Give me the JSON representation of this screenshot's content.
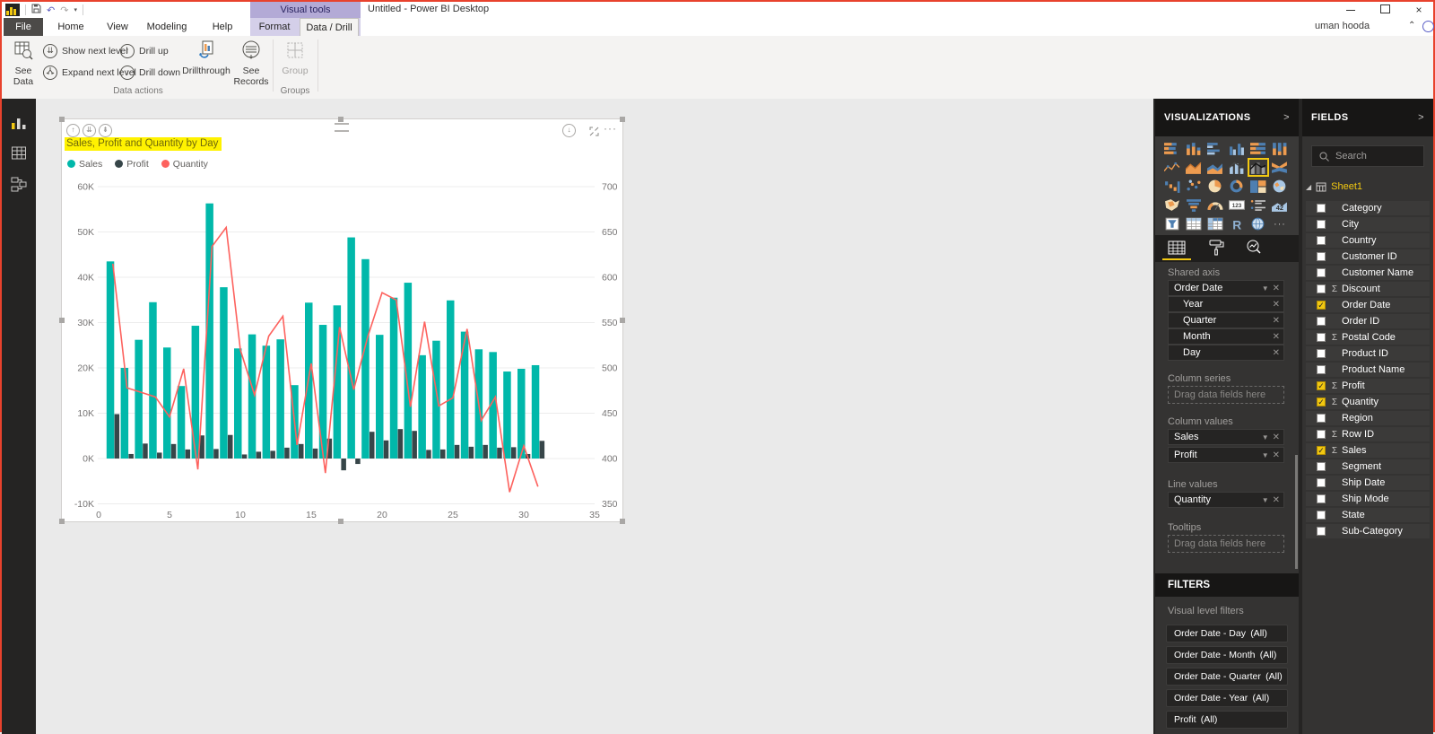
{
  "window": {
    "title": "Untitled - Power BI Desktop",
    "contextual_group": "Visual tools",
    "user": "uman hooda",
    "controls": {
      "minimize": "minimize",
      "maximize": "maximize",
      "close": "×"
    }
  },
  "ribbon": {
    "file_tab": "File",
    "tabs": [
      "Home",
      "View",
      "Modeling",
      "Help"
    ],
    "contextual_tabs": {
      "format": "Format",
      "active": "Data / Drill"
    },
    "commands": {
      "see_data": "See Data",
      "show_next_level": "Show next level",
      "expand_next_level": "Expand next level",
      "drill_up": "Drill up",
      "drill_down": "Drill down",
      "drillthrough": "Drillthrough",
      "see_records": "See Records",
      "group": "Group"
    },
    "group_labels": {
      "data_actions": "Data actions",
      "groups": "Groups"
    }
  },
  "visual": {
    "title": "Sales, Profit and Quantity by Day",
    "header_icons_left": [
      "drill-up",
      "go-to-next-level",
      "expand-next-level"
    ],
    "header_icons_right": [
      "drill-down-toggle",
      "focus-mode",
      "more-options"
    ]
  },
  "chart_data": {
    "type": "combo line and clustered column",
    "title": "Sales, Profit and Quantity by Day",
    "x": [
      1,
      2,
      3,
      4,
      5,
      6,
      7,
      8,
      9,
      10,
      11,
      12,
      13,
      14,
      15,
      16,
      17,
      18,
      19,
      20,
      21,
      22,
      23,
      24,
      25,
      26,
      27,
      28,
      29,
      30,
      31
    ],
    "series": [
      {
        "name": "Sales",
        "type": "column",
        "axis": "left",
        "color": "#01b8aa",
        "values": [
          43500,
          20000,
          26200,
          34500,
          24500,
          16000,
          29300,
          56300,
          37800,
          24300,
          27400,
          24900,
          26300,
          16200,
          34400,
          29500,
          33800,
          48800,
          44000,
          27300,
          35500,
          38800,
          22800,
          26000,
          34900,
          28000,
          24100,
          23500,
          19200,
          19800,
          20600
        ]
      },
      {
        "name": "Profit",
        "type": "column",
        "axis": "left",
        "color": "#374649",
        "values": [
          9800,
          1000,
          3300,
          1300,
          3200,
          2000,
          5100,
          2100,
          5200,
          900,
          1500,
          1700,
          2400,
          3200,
          2200,
          4400,
          -2600,
          -1200,
          5900,
          4000,
          6500,
          6100,
          1900,
          2000,
          3000,
          2600,
          3000,
          2400,
          2500,
          1000,
          3900
        ]
      },
      {
        "name": "Quantity",
        "type": "line",
        "axis": "right",
        "color": "#fd625e",
        "values": [
          615,
          478,
          473,
          468,
          446,
          499,
          388,
          634,
          655,
          520,
          470,
          535,
          557,
          415,
          505,
          384,
          545,
          476,
          535,
          583,
          575,
          457,
          551,
          458,
          467,
          543,
          442,
          468,
          363,
          414,
          369
        ]
      }
    ],
    "left_axis": {
      "ticks": [
        "60K",
        "50K",
        "40K",
        "30K",
        "20K",
        "10K",
        "0K",
        "-10K"
      ],
      "max": 60000,
      "min": -10000
    },
    "right_axis": {
      "ticks": [
        "700",
        "650",
        "600",
        "550",
        "500",
        "450",
        "400",
        "350"
      ],
      "max": 700,
      "min": 350
    },
    "x_axis": {
      "ticks": [
        "0",
        "5",
        "10",
        "15",
        "20",
        "25",
        "30",
        "35"
      ],
      "min": 0,
      "max": 35
    },
    "legend_position": "top-left",
    "grid": true
  },
  "visualizations_panel": {
    "title": "VISUALIZATIONS",
    "icons": [
      [
        "stacked-bar",
        "stacked-column",
        "clustered-bar",
        "clustered-column",
        "100-stacked-bar",
        "100-stacked-column"
      ],
      [
        "line",
        "area",
        "stacked-area",
        "line-stacked-column",
        "line-clustered-column",
        "ribbon"
      ],
      [
        "waterfall",
        "scatter",
        "pie",
        "donut",
        "treemap",
        "map"
      ],
      [
        "filled-map",
        "funnel",
        "gauge",
        "card",
        "multi-row-card",
        "kpi"
      ],
      [
        "slicer",
        "table",
        "matrix",
        "r-script",
        "arcgis-map",
        "more-options"
      ]
    ],
    "selected_icon": "line-clustered-column",
    "tabs": [
      "fields",
      "format",
      "analytics"
    ],
    "wells": [
      {
        "label": "Shared axis",
        "fields": [
          "Order Date"
        ],
        "subfields": [
          "Year",
          "Quarter",
          "Month",
          "Day"
        ]
      },
      {
        "label": "Column series",
        "placeholder": "Drag data fields here"
      },
      {
        "label": "Column values",
        "fields": [
          "Sales",
          "Profit"
        ]
      },
      {
        "label": "Line values",
        "fields": [
          "Quantity"
        ]
      },
      {
        "label": "Tooltips",
        "placeholder": "Drag data fields here"
      }
    ]
  },
  "filters_panel": {
    "title": "FILTERS",
    "section": "Visual level filters",
    "filters": [
      {
        "name": "Order Date - Day",
        "value": "(All)"
      },
      {
        "name": "Order Date - Month",
        "value": "(All)"
      },
      {
        "name": "Order Date - Quarter",
        "value": "(All)"
      },
      {
        "name": "Order Date - Year",
        "value": "(All)"
      },
      {
        "name": "Profit",
        "value": "(All)"
      }
    ]
  },
  "fields_panel": {
    "title": "FIELDS",
    "search_placeholder": "Search",
    "table_name": "Sheet1",
    "fields": [
      {
        "name": "Category",
        "numeric": false,
        "checked": false
      },
      {
        "name": "City",
        "numeric": false,
        "checked": false
      },
      {
        "name": "Country",
        "numeric": false,
        "checked": false
      },
      {
        "name": "Customer ID",
        "numeric": false,
        "checked": false
      },
      {
        "name": "Customer Name",
        "numeric": false,
        "checked": false
      },
      {
        "name": "Discount",
        "numeric": true,
        "checked": false
      },
      {
        "name": "Order Date",
        "numeric": false,
        "checked": true
      },
      {
        "name": "Order ID",
        "numeric": false,
        "checked": false
      },
      {
        "name": "Postal Code",
        "numeric": true,
        "checked": false
      },
      {
        "name": "Product ID",
        "numeric": false,
        "checked": false
      },
      {
        "name": "Product Name",
        "numeric": false,
        "checked": false
      },
      {
        "name": "Profit",
        "numeric": true,
        "checked": true
      },
      {
        "name": "Quantity",
        "numeric": true,
        "checked": true
      },
      {
        "name": "Region",
        "numeric": false,
        "checked": false
      },
      {
        "name": "Row ID",
        "numeric": true,
        "checked": false
      },
      {
        "name": "Sales",
        "numeric": true,
        "checked": true
      },
      {
        "name": "Segment",
        "numeric": false,
        "checked": false
      },
      {
        "name": "Ship Date",
        "numeric": false,
        "checked": false
      },
      {
        "name": "Ship Mode",
        "numeric": false,
        "checked": false
      },
      {
        "name": "State",
        "numeric": false,
        "checked": false
      },
      {
        "name": "Sub-Category",
        "numeric": false,
        "checked": false
      }
    ]
  }
}
